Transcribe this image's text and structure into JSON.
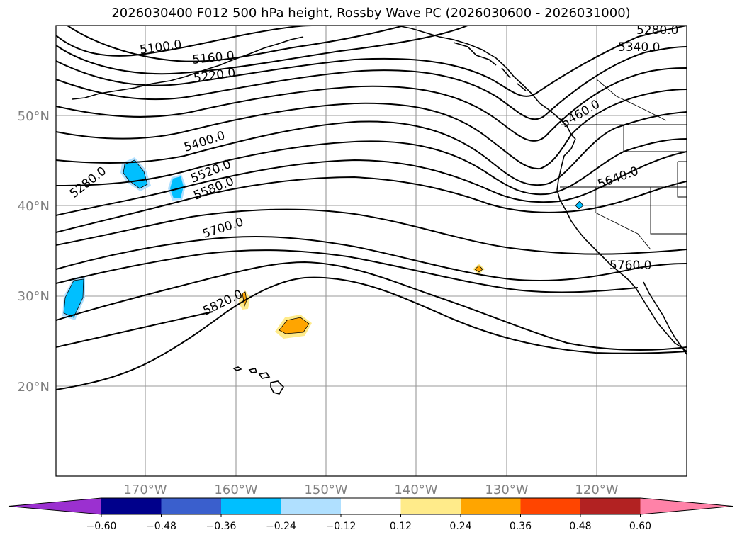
{
  "title": "2026030400 F012 500 hPa height, Rossby Wave PC (2026030600 - 2026031000)",
  "lat_labels": [
    "50°N",
    "40°N",
    "30°N",
    "20°N"
  ],
  "lon_labels": [
    "170°W",
    "160°W",
    "150°W",
    "140°W",
    "130°W",
    "120°W"
  ],
  "contour_labels": [
    "5100.0",
    "5160.0",
    "5220.0",
    "5280.0",
    "5340.0",
    "5280.0",
    "5400.0",
    "5520.0",
    "5580.0",
    "5700.0",
    "5820.0",
    "5460.0",
    "5640.0",
    "5760.0"
  ],
  "colorbar": {
    "ticks": [
      "−0.60",
      "−0.48",
      "−0.36",
      "−0.24",
      "−0.12",
      "0.12",
      "0.24",
      "0.36",
      "0.48",
      "0.60"
    ],
    "colors": [
      "#9b30d0",
      "#00008b",
      "#3a5fcd",
      "#00bfff",
      "#b0e0ff",
      "#ffffff",
      "#ffeb8a",
      "#ffa500",
      "#ff4500",
      "#b22222",
      "#ff82a8"
    ]
  },
  "anomaly_colors": {
    "neg_light": "#b0e0ff",
    "neg_mid": "#00bfff",
    "neg_dark": "#3a5fcd",
    "pos_light": "#ffeb8a",
    "pos_mid": "#ffa500",
    "pos_dark": "#ff4500"
  }
}
